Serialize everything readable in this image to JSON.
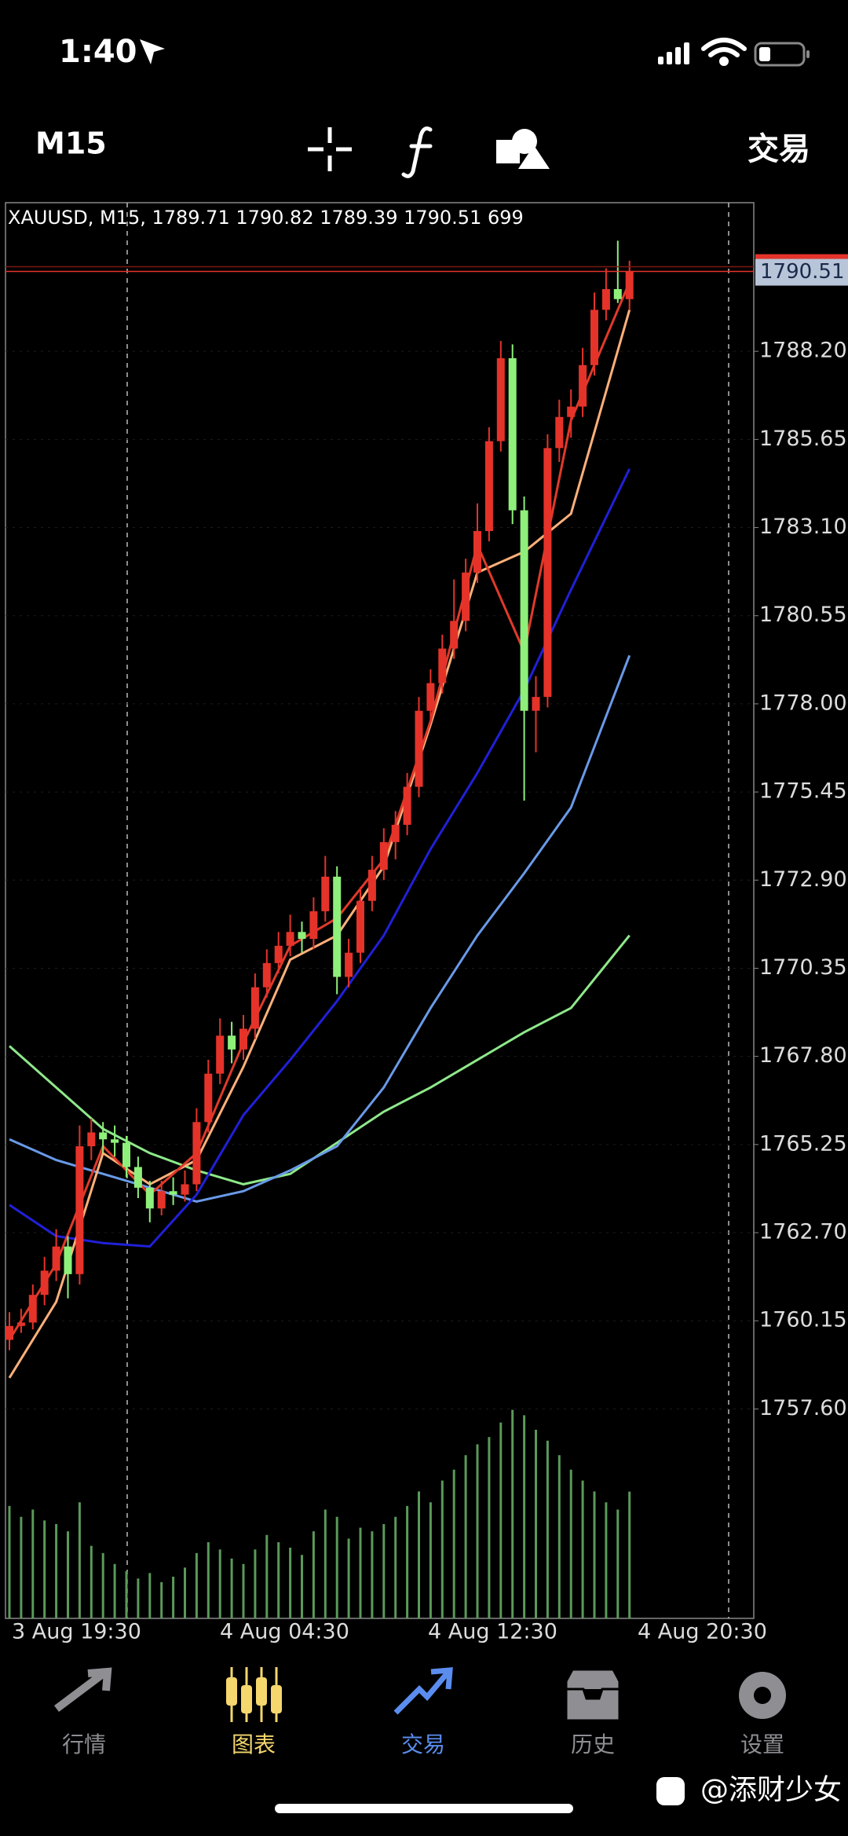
{
  "status_bar": {
    "time": "1:40"
  },
  "toolbar": {
    "trade_button": "交易"
  },
  "chart_data": {
    "type": "candlestick",
    "timeframe": "M15",
    "header": "XAUUSD, M15, 1789.71 1790.82 1789.39 1790.51 699",
    "up_color": "#e5332a",
    "down_color": "#8ef07a",
    "ylim": [
      1751.54,
      1792.5
    ],
    "yticks": [
      {
        "value": 1788.2,
        "label": "1788.20"
      },
      1785.65,
      {
        "value": 1783.1,
        "label": "1783.10"
      },
      1780.55,
      {
        "value": 1778,
        "label": "1778.00"
      },
      1775.45,
      {
        "value": 1772.9,
        "label": "1772.90"
      },
      1770.35,
      {
        "value": 1767.8,
        "label": "1767.80"
      },
      1765.25,
      {
        "value": 1762.7,
        "label": "1762.70"
      },
      1760.15,
      {
        "value": 1757.6,
        "label": "1757.60"
      }
    ],
    "time_labels": [
      "3 Aug 19:30",
      "4 Aug 04:30",
      "4 Aug 12:30",
      "4 Aug 20:30"
    ],
    "ohlc": [
      [
        1759.6,
        1760.4,
        1759.3,
        1760.0
      ],
      [
        1760.0,
        1760.5,
        1759.8,
        1760.1
      ],
      [
        1760.1,
        1761.2,
        1759.9,
        1760.9
      ],
      [
        1760.9,
        1762.0,
        1760.6,
        1761.6
      ],
      [
        1761.6,
        1762.8,
        1761.3,
        1762.3
      ],
      [
        1762.3,
        1762.6,
        1760.8,
        1761.5
      ],
      [
        1761.5,
        1765.8,
        1761.2,
        1765.2
      ],
      [
        1765.2,
        1766.0,
        1764.8,
        1765.6
      ],
      [
        1765.6,
        1765.9,
        1765.0,
        1765.4
      ],
      [
        1765.4,
        1765.8,
        1764.9,
        1765.3
      ],
      [
        1765.3,
        1765.5,
        1764.3,
        1764.6
      ],
      [
        1764.6,
        1764.9,
        1763.7,
        1764.0
      ],
      [
        1764.0,
        1764.2,
        1763.0,
        1763.4
      ],
      [
        1763.4,
        1764.2,
        1763.2,
        1763.9
      ],
      [
        1763.9,
        1764.3,
        1763.5,
        1763.8
      ],
      [
        1763.8,
        1764.5,
        1763.6,
        1764.1
      ],
      [
        1764.1,
        1766.3,
        1763.9,
        1765.9
      ],
      [
        1765.9,
        1767.7,
        1765.6,
        1767.3
      ],
      [
        1767.3,
        1768.9,
        1767.0,
        1768.4
      ],
      [
        1768.4,
        1768.8,
        1767.6,
        1768.0
      ],
      [
        1768.0,
        1769.0,
        1767.7,
        1768.6
      ],
      [
        1768.6,
        1770.2,
        1768.3,
        1769.8
      ],
      [
        1769.8,
        1770.9,
        1769.5,
        1770.5
      ],
      [
        1770.5,
        1771.4,
        1770.2,
        1771.0
      ],
      [
        1771.0,
        1771.9,
        1770.7,
        1771.4
      ],
      [
        1771.4,
        1771.7,
        1770.8,
        1771.2
      ],
      [
        1771.2,
        1772.4,
        1770.9,
        1772.0
      ],
      [
        1772.0,
        1773.6,
        1771.7,
        1773.0
      ],
      [
        1773.0,
        1773.3,
        1769.6,
        1770.1
      ],
      [
        1770.1,
        1771.2,
        1769.8,
        1770.8
      ],
      [
        1770.8,
        1772.7,
        1770.5,
        1772.3
      ],
      [
        1772.3,
        1773.6,
        1772.0,
        1773.2
      ],
      [
        1773.2,
        1774.4,
        1772.9,
        1774.0
      ],
      [
        1774.0,
        1774.9,
        1773.5,
        1774.5
      ],
      [
        1774.5,
        1776.0,
        1774.2,
        1775.6
      ],
      [
        1775.6,
        1778.2,
        1775.3,
        1777.8
      ],
      [
        1777.8,
        1779.0,
        1777.5,
        1778.6
      ],
      [
        1778.6,
        1780.0,
        1778.3,
        1779.6
      ],
      [
        1779.6,
        1781.6,
        1779.3,
        1780.4
      ],
      [
        1780.4,
        1782.2,
        1780.1,
        1781.8
      ],
      [
        1781.8,
        1783.8,
        1781.5,
        1783.0
      ],
      [
        1783.0,
        1786.0,
        1782.7,
        1785.6
      ],
      [
        1785.6,
        1788.5,
        1785.3,
        1788.0
      ],
      [
        1788.0,
        1788.4,
        1783.2,
        1783.6
      ],
      [
        1783.6,
        1784.0,
        1775.2,
        1777.8
      ],
      [
        1777.8,
        1778.8,
        1776.6,
        1778.2
      ],
      [
        1778.2,
        1785.8,
        1777.9,
        1785.4
      ],
      [
        1785.4,
        1786.8,
        1785.0,
        1786.3
      ],
      [
        1786.3,
        1787.1,
        1785.7,
        1786.6
      ],
      [
        1786.6,
        1788.3,
        1786.3,
        1787.8
      ],
      [
        1787.8,
        1789.9,
        1787.5,
        1789.4
      ],
      [
        1789.4,
        1790.6,
        1789.1,
        1790.0
      ],
      [
        1790.0,
        1791.4,
        1789.6,
        1789.71
      ],
      [
        1789.71,
        1790.82,
        1789.39,
        1790.51
      ]
    ],
    "volume_ylim": [
      0,
      1200
    ],
    "volume_color": "#5a9a5a",
    "volume": [
      620,
      560,
      600,
      540,
      520,
      480,
      640,
      400,
      360,
      300,
      260,
      220,
      250,
      200,
      230,
      280,
      360,
      420,
      380,
      330,
      300,
      380,
      460,
      420,
      390,
      350,
      480,
      600,
      560,
      440,
      500,
      480,
      520,
      560,
      620,
      700,
      640,
      760,
      820,
      900,
      960,
      1000,
      1080,
      1150,
      1120,
      1040,
      980,
      900,
      820,
      760,
      700,
      640,
      600,
      699
    ],
    "ma_x": [
      0,
      4,
      8,
      12,
      16,
      20,
      24,
      28,
      32,
      36,
      40,
      44,
      48,
      53
    ],
    "series": [
      {
        "color": "#8ee88a",
        "values": [
          1768.1,
          1766.9,
          1765.7,
          1765.0,
          1764.5,
          1764.1,
          1764.4,
          1765.3,
          1766.2,
          1766.9,
          1767.7,
          1768.5,
          1769.2,
          1771.3
        ]
      },
      {
        "color": "#6a9ae8",
        "values": [
          1765.4,
          1764.8,
          1764.4,
          1764.0,
          1763.6,
          1763.9,
          1764.5,
          1765.2,
          1766.9,
          1769.2,
          1771.3,
          1773.1,
          1775.0,
          1779.4
        ]
      },
      {
        "color": "#2020d8",
        "values": [
          1763.5,
          1762.6,
          1762.4,
          1762.3,
          1763.8,
          1766.1,
          1767.7,
          1769.4,
          1771.3,
          1773.8,
          1776.0,
          1778.4,
          1781.3,
          1784.8
        ]
      },
      {
        "color": "#ffb07a",
        "values": [
          1758.5,
          1760.7,
          1765.0,
          1764.1,
          1764.8,
          1767.5,
          1770.6,
          1771.3,
          1773.3,
          1777.4,
          1781.8,
          1782.4,
          1783.5,
          1789.4
        ]
      },
      {
        "color": "#e03a2a",
        "values": [
          1759.6,
          1761.8,
          1765.2,
          1763.8,
          1765.0,
          1768.2,
          1771.0,
          1771.8,
          1773.5,
          1777.5,
          1782.6,
          1779.5,
          1786.2,
          1790.2
        ]
      }
    ]
  },
  "tab_bar": {
    "tabs": [
      {
        "label": "行情",
        "color": "#8e8e93"
      },
      {
        "label": "图表",
        "color": "#f5d76e"
      },
      {
        "label": "交易",
        "color": "#5b8def"
      },
      {
        "label": "历史",
        "color": "#8e8e93"
      },
      {
        "label": "设置",
        "color": "#8e8e93"
      }
    ]
  },
  "watermark": "@添财少女"
}
